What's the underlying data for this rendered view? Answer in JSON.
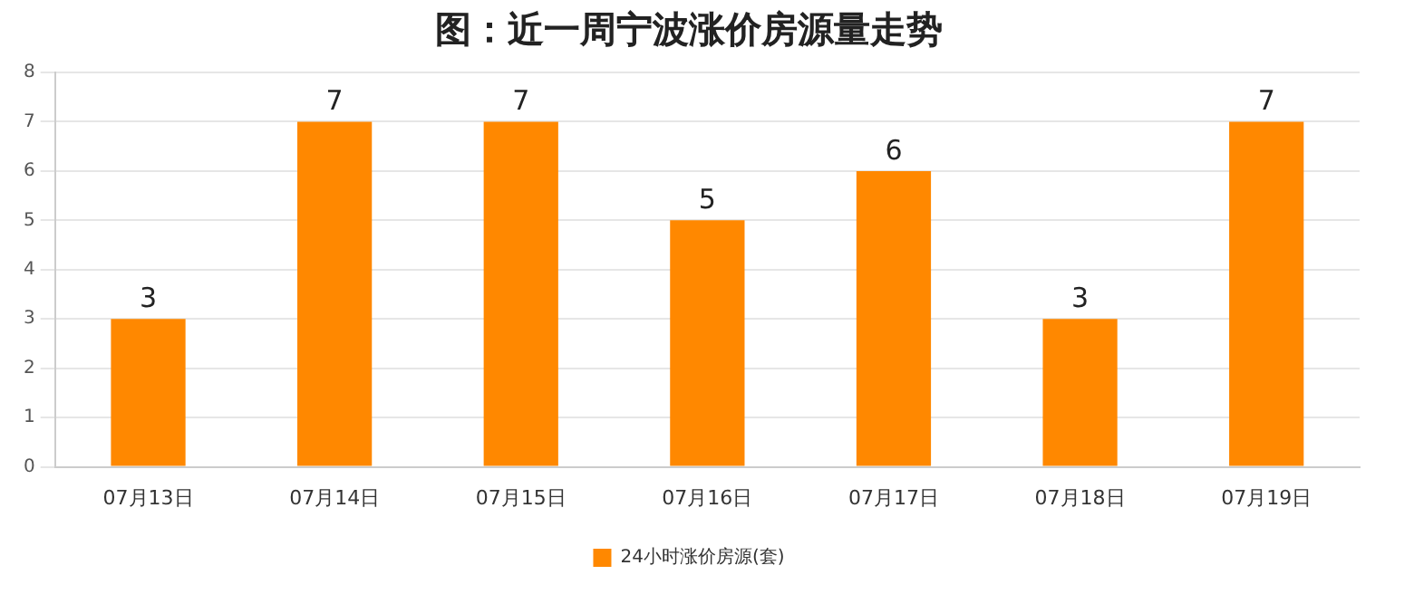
{
  "chart_data": {
    "type": "bar",
    "title": "图：近一周宁波涨价房源量走势",
    "categories": [
      "07月13日",
      "07月14日",
      "07月15日",
      "07月16日",
      "07月17日",
      "07月18日",
      "07月19日"
    ],
    "series": [
      {
        "name": "24小时涨价房源(套)",
        "color": "#ff8800",
        "values": [
          3,
          7,
          7,
          5,
          6,
          3,
          7
        ]
      }
    ],
    "ylim": [
      0,
      8
    ],
    "yticks": [
      0,
      1,
      2,
      3,
      4,
      5,
      6,
      7,
      8
    ],
    "grid": "y",
    "legend": "bottom",
    "data_labels": true
  }
}
